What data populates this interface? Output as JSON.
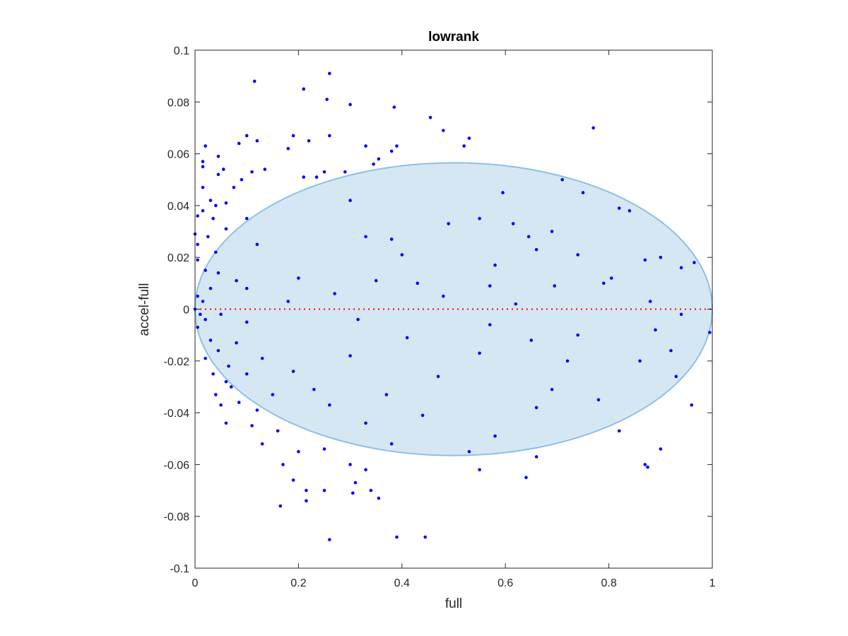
{
  "chart_data": {
    "type": "scatter",
    "title": "lowrank",
    "xlabel": "full",
    "ylabel": "accel-full",
    "xlim": [
      0,
      1
    ],
    "ylim": [
      -0.1,
      0.1
    ],
    "xticks": [
      "0",
      "0.2",
      "0.4",
      "0.6",
      "0.8",
      "1"
    ],
    "yticks": [
      "-0.1",
      "-0.08",
      "-0.06",
      "-0.04",
      "-0.02",
      "0",
      "0.02",
      "0.04",
      "0.06",
      "0.08",
      "0.1"
    ],
    "grid": false,
    "legend": "none",
    "series": [
      {
        "marker": "dot",
        "color": "#0000ff",
        "points": [
          [
            0.26,
            0.091
          ],
          [
            0.115,
            0.088
          ],
          [
            0.21,
            0.085
          ],
          [
            0.255,
            0.081
          ],
          [
            0.3,
            0.079
          ],
          [
            0.385,
            0.078
          ],
          [
            0.455,
            0.074
          ],
          [
            0.77,
            0.07
          ],
          [
            0.48,
            0.069
          ],
          [
            0.1,
            0.067
          ],
          [
            0.19,
            0.067
          ],
          [
            0.26,
            0.067
          ],
          [
            0.53,
            0.066
          ],
          [
            0.12,
            0.065
          ],
          [
            0.22,
            0.065
          ],
          [
            0.52,
            0.063
          ],
          [
            0.02,
            0.063
          ],
          [
            0.39,
            0.063
          ],
          [
            0.33,
            0.063
          ],
          [
            0.085,
            0.064
          ],
          [
            0.18,
            0.062
          ],
          [
            0.38,
            0.061
          ],
          [
            0.355,
            0.058
          ],
          [
            0.045,
            0.059
          ],
          [
            0.015,
            0.057
          ],
          [
            0.345,
            0.056
          ],
          [
            0.015,
            0.055
          ],
          [
            0.055,
            0.054
          ],
          [
            0.135,
            0.054
          ],
          [
            0.045,
            0.052
          ],
          [
            0.11,
            0.053
          ],
          [
            0.25,
            0.053
          ],
          [
            0.29,
            0.053
          ],
          [
            0.21,
            0.051
          ],
          [
            0.235,
            0.051
          ],
          [
            0.09,
            0.05
          ],
          [
            0.71,
            0.05
          ],
          [
            0.75,
            0.045
          ],
          [
            0.015,
            0.047
          ],
          [
            0.075,
            0.047
          ],
          [
            0.595,
            0.045
          ],
          [
            0.03,
            0.042
          ],
          [
            0.06,
            0.041
          ],
          [
            0.04,
            0.04
          ],
          [
            0.015,
            0.038
          ],
          [
            0.82,
            0.039
          ],
          [
            0.84,
            0.038
          ],
          [
            0.005,
            0.036
          ],
          [
            0.035,
            0.035
          ],
          [
            0.1,
            0.035
          ],
          [
            0.3,
            0.042
          ],
          [
            0.55,
            0.035
          ],
          [
            0.615,
            0.033
          ],
          [
            0.49,
            0.033
          ],
          [
            0.69,
            0.03
          ],
          [
            0.33,
            0.028
          ],
          [
            0.06,
            0.031
          ],
          [
            0.0,
            0.029
          ],
          [
            0.38,
            0.027
          ],
          [
            0.645,
            0.028
          ],
          [
            0.12,
            0.025
          ],
          [
            0.025,
            0.028
          ],
          [
            0.005,
            0.025
          ],
          [
            0.04,
            0.022
          ],
          [
            0.66,
            0.023
          ],
          [
            0.4,
            0.021
          ],
          [
            0.74,
            0.021
          ],
          [
            0.87,
            0.019
          ],
          [
            0.9,
            0.02
          ],
          [
            0.965,
            0.018
          ],
          [
            0.58,
            0.017
          ],
          [
            0.94,
            0.016
          ],
          [
            0.005,
            0.019
          ],
          [
            0.02,
            0.015
          ],
          [
            0.045,
            0.014
          ],
          [
            0.2,
            0.012
          ],
          [
            0.35,
            0.011
          ],
          [
            0.08,
            0.011
          ],
          [
            0.43,
            0.01
          ],
          [
            0.695,
            0.009
          ],
          [
            0.79,
            0.01
          ],
          [
            0.805,
            0.012
          ],
          [
            0.57,
            0.009
          ],
          [
            0.1,
            0.008
          ],
          [
            0.03,
            0.008
          ],
          [
            0.27,
            0.006
          ],
          [
            0.48,
            0.005
          ],
          [
            0.005,
            0.005
          ],
          [
            0.015,
            0.003
          ],
          [
            0.18,
            0.003
          ],
          [
            0.62,
            0.002
          ],
          [
            0.88,
            0.003
          ],
          [
            0.94,
            -0.002
          ],
          [
            0.05,
            -0.002
          ],
          [
            0.0,
            0.0
          ],
          [
            0.01,
            -0.002
          ],
          [
            0.02,
            -0.004
          ],
          [
            0.1,
            -0.005
          ],
          [
            0.315,
            -0.004
          ],
          [
            0.57,
            -0.006
          ],
          [
            0.89,
            -0.008
          ],
          [
            0.995,
            -0.009
          ],
          [
            0.005,
            -0.007
          ],
          [
            0.03,
            -0.012
          ],
          [
            0.08,
            -0.013
          ],
          [
            0.41,
            -0.011
          ],
          [
            0.65,
            -0.012
          ],
          [
            0.74,
            -0.01
          ],
          [
            0.045,
            -0.016
          ],
          [
            0.02,
            -0.019
          ],
          [
            0.92,
            -0.016
          ],
          [
            0.55,
            -0.017
          ],
          [
            0.3,
            -0.018
          ],
          [
            0.13,
            -0.019
          ],
          [
            0.72,
            -0.02
          ],
          [
            0.86,
            -0.02
          ],
          [
            0.065,
            -0.022
          ],
          [
            0.035,
            -0.025
          ],
          [
            0.1,
            -0.025
          ],
          [
            0.19,
            -0.024
          ],
          [
            0.47,
            -0.026
          ],
          [
            0.93,
            -0.026
          ],
          [
            0.06,
            -0.028
          ],
          [
            0.07,
            -0.03
          ],
          [
            0.23,
            -0.031
          ],
          [
            0.69,
            -0.031
          ],
          [
            0.04,
            -0.033
          ],
          [
            0.15,
            -0.033
          ],
          [
            0.37,
            -0.033
          ],
          [
            0.78,
            -0.035
          ],
          [
            0.085,
            -0.036
          ],
          [
            0.05,
            -0.037
          ],
          [
            0.96,
            -0.037
          ],
          [
            0.26,
            -0.037
          ],
          [
            0.66,
            -0.038
          ],
          [
            0.12,
            -0.039
          ],
          [
            0.44,
            -0.041
          ],
          [
            0.06,
            -0.044
          ],
          [
            0.11,
            -0.045
          ],
          [
            0.33,
            -0.044
          ],
          [
            0.16,
            -0.047
          ],
          [
            0.82,
            -0.047
          ],
          [
            0.58,
            -0.049
          ],
          [
            0.38,
            -0.052
          ],
          [
            0.13,
            -0.052
          ],
          [
            0.2,
            -0.055
          ],
          [
            0.25,
            -0.054
          ],
          [
            0.53,
            -0.055
          ],
          [
            0.66,
            -0.057
          ],
          [
            0.9,
            -0.054
          ],
          [
            0.17,
            -0.06
          ],
          [
            0.3,
            -0.06
          ],
          [
            0.33,
            -0.062
          ],
          [
            0.55,
            -0.062
          ],
          [
            0.87,
            -0.06
          ],
          [
            0.875,
            -0.061
          ],
          [
            0.64,
            -0.065
          ],
          [
            0.19,
            -0.066
          ],
          [
            0.31,
            -0.067
          ],
          [
            0.215,
            -0.07
          ],
          [
            0.25,
            -0.07
          ],
          [
            0.305,
            -0.071
          ],
          [
            0.34,
            -0.07
          ],
          [
            0.355,
            -0.073
          ],
          [
            0.215,
            -0.074
          ],
          [
            0.165,
            -0.076
          ],
          [
            0.39,
            -0.088
          ],
          [
            0.445,
            -0.088
          ],
          [
            0.26,
            -0.089
          ]
        ]
      }
    ],
    "reference_line": {
      "y": 0,
      "style": "dotted",
      "color": "#ff0000"
    },
    "ellipse": {
      "center": [
        0.5,
        0.0
      ],
      "semi_axes": [
        0.5,
        0.0565
      ],
      "fill": "#d6e7f4",
      "stroke": "#8ec0e4"
    }
  }
}
